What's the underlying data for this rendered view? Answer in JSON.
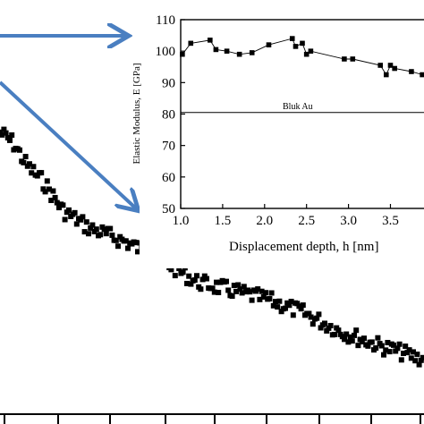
{
  "chart_data": [
    {
      "type": "scatter",
      "title": "",
      "xlabel": "",
      "ylabel": "",
      "note": "main plot cropped; axis labels and tick values are outside the visible area",
      "x_ticks_visible": 6,
      "series": [
        {
          "marker": "square",
          "color": "#000000",
          "points_trend": "decreasing"
        }
      ]
    },
    {
      "type": "line",
      "title": "",
      "xlabel": "Displacement depth, h [nm]",
      "ylabel": "Elastic Modulus, E [GPa]",
      "xlim": [
        1.0,
        3.9
      ],
      "ylim": [
        50,
        110
      ],
      "x_tick_labels": [
        "1.0",
        "1.5",
        "2.0",
        "2.5",
        "3.0",
        "3.5"
      ],
      "y_tick_labels": [
        "50",
        "60",
        "70",
        "80",
        "90",
        "100",
        "110"
      ],
      "reference_line": {
        "y": 80.5,
        "label": "Bluk Au"
      },
      "series": [
        {
          "marker": "square",
          "x": [
            1.02,
            1.12,
            1.35,
            1.42,
            1.55,
            1.7,
            1.85,
            2.05,
            2.33,
            2.37,
            2.45,
            2.5,
            2.55,
            2.95,
            3.05,
            3.38,
            3.45,
            3.5,
            3.55,
            3.75,
            3.88
          ],
          "y": [
            99.0,
            102.5,
            103.5,
            100.5,
            100.0,
            99.0,
            99.5,
            102.0,
            104.0,
            101.5,
            102.5,
            99.0,
            100.0,
            97.5,
            97.5,
            95.5,
            92.5,
            95.5,
            94.5,
            93.5,
            92.5
          ]
        }
      ]
    }
  ],
  "colors": {
    "markers": "#000000",
    "arrows": "#4a7fc1",
    "axes": "#000000"
  }
}
